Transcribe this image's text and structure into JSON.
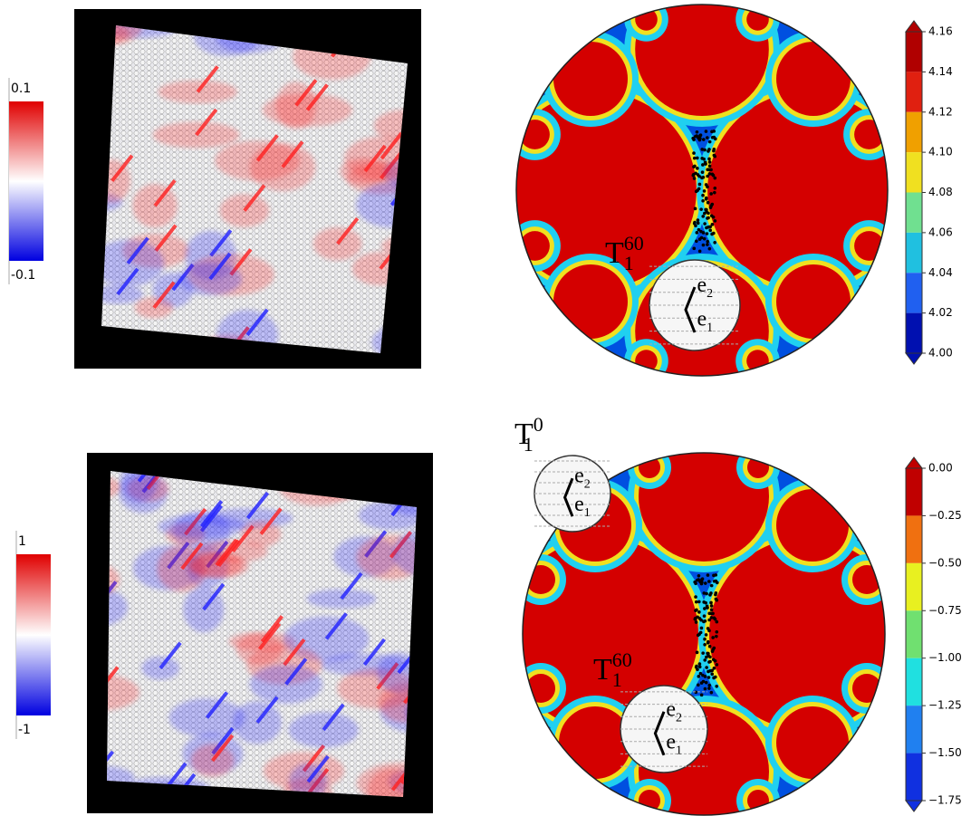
{
  "top_left": {
    "colorbar": {
      "max": "0.1",
      "min": "-0.1"
    }
  },
  "top_right": {
    "colorbar_ticks": [
      "4.16",
      "4.14",
      "4.12",
      "4.10",
      "4.08",
      "4.06",
      "4.04",
      "4.02",
      "4.00"
    ],
    "annotations": [
      {
        "base": "T",
        "sup": "60",
        "sub": "1"
      }
    ],
    "insets": [
      {
        "vectors": [
          {
            "base": "e",
            "sub": "2"
          },
          {
            "base": "e",
            "sub": "1"
          }
        ]
      }
    ]
  },
  "bottom_left": {
    "colorbar": {
      "max": "1",
      "min": "-1"
    }
  },
  "bottom_right": {
    "colorbar_ticks": [
      "0.00",
      "−0.25",
      "−0.50",
      "−0.75",
      "−1.00",
      "−1.25",
      "−1.50",
      "−1.75"
    ],
    "annotations": [
      {
        "base": "T",
        "sup": "0",
        "sub": "1"
      },
      {
        "base": "T",
        "sup": "60",
        "sub": "1"
      }
    ],
    "insets": [
      {
        "vectors": [
          {
            "base": "e",
            "sub": "2"
          },
          {
            "base": "e",
            "sub": "1"
          }
        ]
      },
      {
        "vectors": [
          {
            "base": "e",
            "sub": "2"
          },
          {
            "base": "e",
            "sub": "1"
          }
        ]
      }
    ]
  }
}
